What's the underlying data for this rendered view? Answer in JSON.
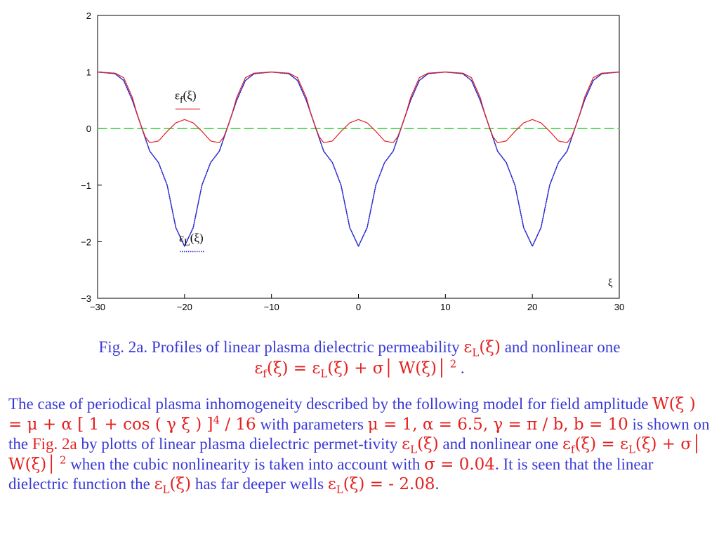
{
  "chart_data": {
    "type": "line",
    "xlim": [
      -30,
      30
    ],
    "ylim": [
      -3,
      2
    ],
    "x_ticks": [
      "−30",
      "−20",
      "−10",
      "0",
      "10",
      "20",
      "30"
    ],
    "y_ticks": [
      "2",
      "1",
      "0",
      "−1",
      "−2",
      "−3"
    ],
    "xlabel": "ξ",
    "period": 20,
    "grid": false,
    "series": [
      {
        "name": "εf(ξ)",
        "color": "#e52020",
        "style": "solid",
        "x": [
          -30,
          -28,
          -27,
          -26,
          -25.5,
          -25,
          -24.5,
          -24,
          -23,
          -22,
          -21,
          -20,
          -19,
          -18,
          -17,
          -16,
          -15.5,
          -15,
          -14.5,
          -14,
          -13,
          -12,
          -10,
          -8,
          -7,
          -6,
          -5.5,
          -5,
          -4.5,
          -4,
          -3,
          -2,
          -1,
          0,
          1,
          2,
          3,
          4,
          4.5,
          5,
          5.5,
          6,
          7,
          8,
          10,
          12,
          13,
          14,
          14.5,
          15,
          15.5,
          16,
          17,
          18,
          19,
          20,
          21,
          22,
          23,
          24,
          24.5,
          25,
          25.5,
          26,
          27,
          28,
          30
        ],
        "y": [
          1,
          0.98,
          0.9,
          0.55,
          0.28,
          0.05,
          -0.15,
          -0.25,
          -0.22,
          -0.05,
          0.1,
          0.16,
          0.1,
          -0.05,
          -0.22,
          -0.25,
          -0.15,
          0.05,
          0.28,
          0.55,
          0.9,
          0.98,
          1,
          0.98,
          0.9,
          0.55,
          0.28,
          0.05,
          -0.15,
          -0.25,
          -0.22,
          -0.05,
          0.1,
          0.16,
          0.1,
          -0.05,
          -0.22,
          -0.25,
          -0.15,
          0.05,
          0.28,
          0.55,
          0.9,
          0.98,
          1,
          0.98,
          0.9,
          0.55,
          0.28,
          0.05,
          -0.15,
          -0.25,
          -0.22,
          -0.05,
          0.1,
          0.16,
          0.1,
          -0.05,
          -0.22,
          -0.25,
          -0.15,
          0.05,
          0.28,
          0.55,
          0.9,
          0.98,
          1
        ]
      },
      {
        "name": "εL(ξ)",
        "color": "#2727d0",
        "style": "dotted",
        "x": [
          -30,
          -28,
          -27,
          -26,
          -25,
          -24,
          -23,
          -22,
          -21,
          -20,
          -19,
          -18,
          -17,
          -16,
          -15,
          -14,
          -13,
          -12,
          -10,
          -8,
          -7,
          -6,
          -5,
          -4,
          -3,
          -2,
          -1,
          0,
          1,
          2,
          3,
          4,
          5,
          6,
          7,
          8,
          10,
          12,
          13,
          14,
          15,
          16,
          17,
          18,
          19,
          20,
          21,
          22,
          23,
          24,
          25,
          26,
          27,
          28,
          30
        ],
        "y": [
          1,
          0.97,
          0.85,
          0.5,
          0.05,
          -0.4,
          -0.6,
          -1.0,
          -1.75,
          -2.08,
          -1.75,
          -1.0,
          -0.6,
          -0.4,
          0.05,
          0.5,
          0.85,
          0.97,
          1,
          0.97,
          0.85,
          0.5,
          0.05,
          -0.4,
          -0.6,
          -1.0,
          -1.75,
          -2.08,
          -1.75,
          -1.0,
          -0.6,
          -0.4,
          0.05,
          0.5,
          0.85,
          0.97,
          1,
          0.97,
          0.85,
          0.5,
          0.05,
          -0.4,
          -0.6,
          -1.0,
          -1.75,
          -2.08,
          -1.75,
          -1.0,
          -0.6,
          -0.4,
          0.05,
          0.5,
          0.85,
          0.97,
          1
        ]
      },
      {
        "name": "",
        "color": "#22d022",
        "style": "dashed",
        "x": [
          -30,
          30
        ],
        "y": [
          0,
          0
        ]
      }
    ],
    "annotations": [
      {
        "text_main": "ε",
        "text_sub": "f",
        "text_arg": "(ξ)",
        "at": [
          -20,
          0.52
        ],
        "key": "ef"
      },
      {
        "text_main": "ε",
        "text_sub": "L",
        "text_arg": "(ξ)",
        "at": [
          -19.5,
          -2.0
        ],
        "key": "el"
      }
    ]
  },
  "caption": {
    "line1": "Fig. 2a. Profiles of linear plasma dielectric permeability ",
    "eps": "ε",
    "sub_L": "L",
    "xi": "(ξ)",
    "and_nonlinear": " and nonlinear one",
    "sub_f": "f",
    "eq_part": " = ",
    "plus_sigma": " + σ",
    "w_part": " W(ξ)",
    "sq": " 2",
    "tail": " ."
  },
  "body": {
    "t1": "The case of periodical plasma inhomogeneity described by the following model for field amplitude ",
    "model": "W(ξ ) = μ + α [ 1 + cos ( γ ξ ) ]",
    "model_pow": "4",
    "model_tail": " / 16",
    "t2": " with parameters ",
    "params": "μ = 1, α = 6.5, γ = π / b, b = 10",
    "t3": " is shown on the ",
    "fig": "Fig. 2a",
    "t4": " by plotts of linear plasma dielectric permet-tivity ",
    "t5": " and nonlinear one ",
    "t6": " when the cubic nonlinearity is taken into account with ",
    "sigma_val": "σ = 0.04",
    "t7": ". It is seen that the linear dielectric function the ",
    "t8": " has far deeper wells ",
    "well_val": " = - 2.08",
    "t9": "."
  }
}
